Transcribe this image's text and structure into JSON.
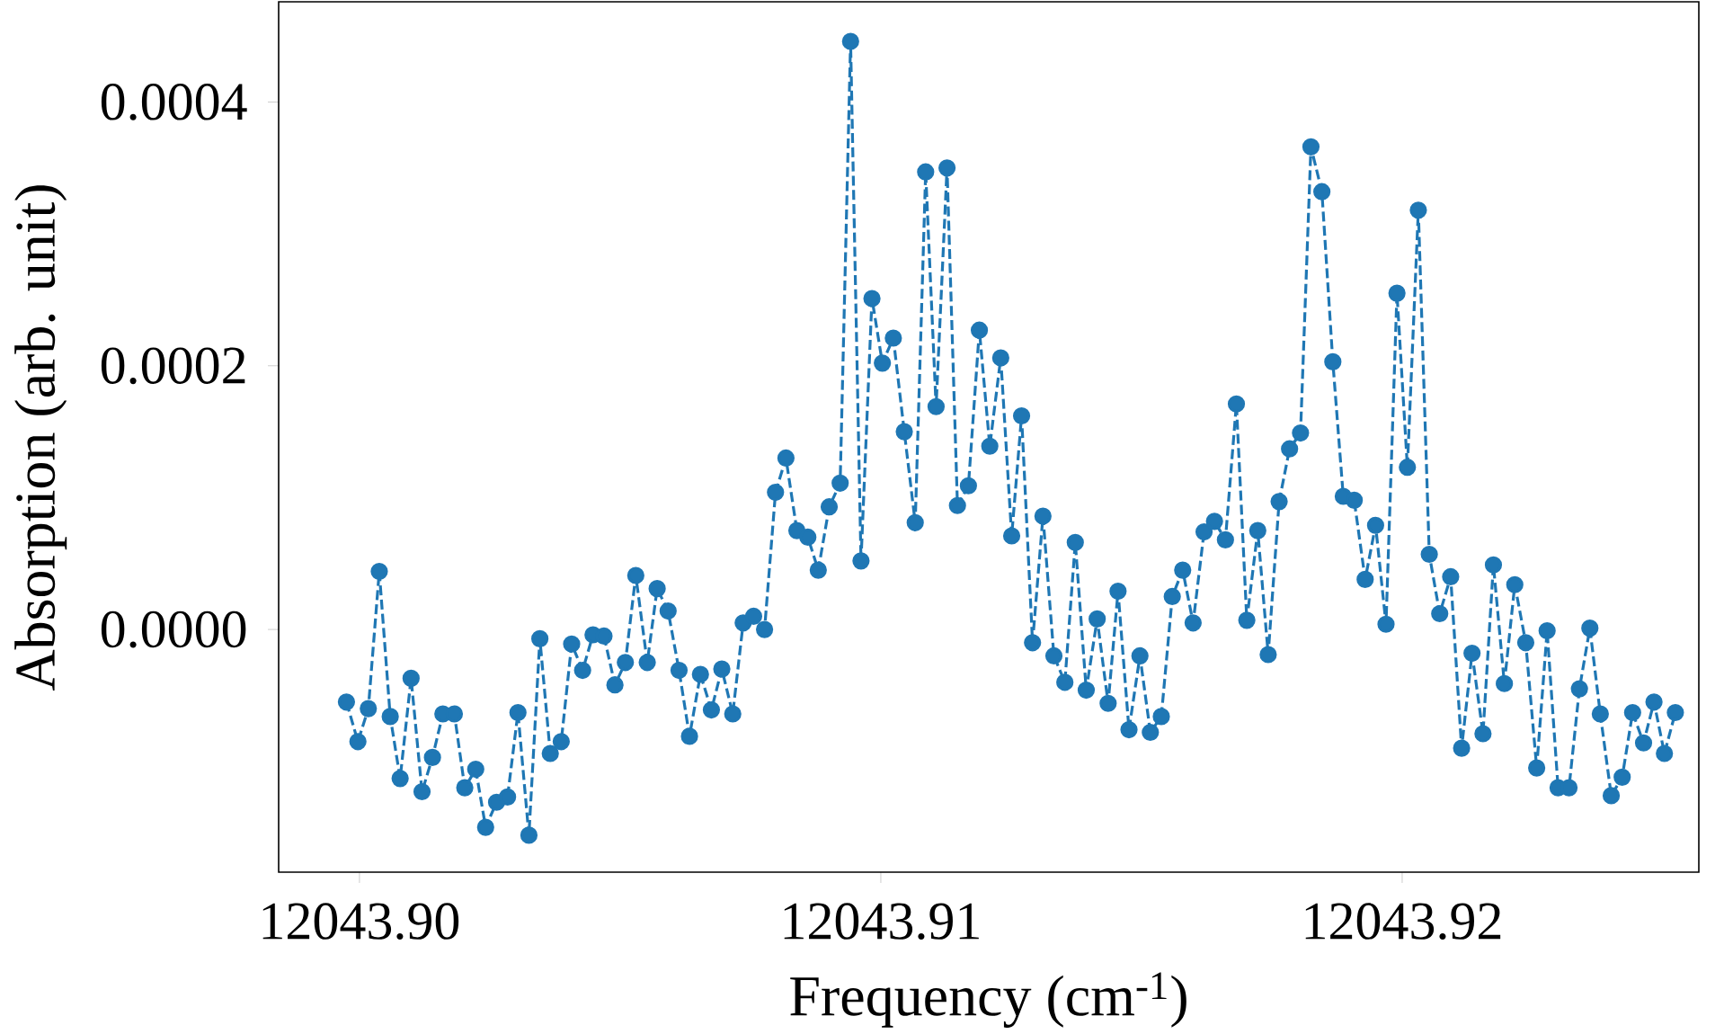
{
  "chart_data": {
    "type": "line",
    "xlabel": "Frequency (cm$^{-1}$)",
    "ylabel": "Absorption (arb. unit)",
    "xlim": [
      12043.89845,
      12043.92569
    ],
    "ylim": [
      -0.000184,
      0.000476
    ],
    "xticks": [
      {
        "value": 12043.9,
        "label": "12043.90"
      },
      {
        "value": 12043.91,
        "label": "12043.91"
      },
      {
        "value": 12043.92,
        "label": "12043.92"
      }
    ],
    "yticks": [
      {
        "value": 0.0,
        "label": "0.0000"
      },
      {
        "value": 0.0002,
        "label": "0.0002"
      },
      {
        "value": 0.0004,
        "label": "0.0004"
      }
    ],
    "grid": false,
    "marker": "circle",
    "line_style": "dashed",
    "series": [
      {
        "color": "#1f77b4",
        "x": [
          12043.89975,
          12043.89997,
          12043.90017,
          12043.90038,
          12043.90059,
          12043.90078,
          12043.90099,
          12043.9012,
          12043.9014,
          12043.9016,
          12043.90182,
          12043.90202,
          12043.90223,
          12043.90242,
          12043.90263,
          12043.90284,
          12043.90304,
          12043.90325,
          12043.90346,
          12043.90366,
          12043.90387,
          12043.90407,
          12043.90428,
          12043.90448,
          12043.90469,
          12043.9049,
          12043.9051,
          12043.9053,
          12043.90552,
          12043.90571,
          12043.90592,
          12043.90613,
          12043.90633,
          12043.90654,
          12043.90675,
          12043.90695,
          12043.90716,
          12043.90736,
          12043.90756,
          12043.90777,
          12043.90798,
          12043.90818,
          12043.90839,
          12043.9086,
          12043.9088,
          12043.90901,
          12043.90922,
          12043.90942,
          12043.90962,
          12043.90983,
          12043.91003,
          12043.91024,
          12043.91045,
          12043.91066,
          12043.91086,
          12043.91106,
          12043.91127,
          12043.91147,
          12043.91168,
          12043.91189,
          12043.91209,
          12043.9123,
          12043.91251,
          12043.9127,
          12043.91291,
          12043.91311,
          12043.91332,
          12043.91353,
          12043.91373,
          12043.91394,
          12043.91415,
          12043.91436,
          12043.91455,
          12043.91476,
          12043.91497,
          12043.91517,
          12043.91538,
          12043.91559,
          12043.91579,
          12043.91599,
          12043.9162,
          12043.9164,
          12043.91661,
          12043.91682,
          12043.91702,
          12043.91723,
          12043.91743,
          12043.91764,
          12043.91784,
          12043.91805,
          12043.91825,
          12043.91846,
          12043.91867,
          12043.91887,
          12043.91908,
          12043.91929,
          12043.91949,
          12043.91969,
          12043.9199,
          12043.9201,
          12043.92031,
          12043.92052,
          12043.92072,
          12043.92093,
          12043.92114,
          12043.92134,
          12043.92155,
          12043.92175,
          12043.92196,
          12043.92216,
          12043.92237,
          12043.92258,
          12043.92278,
          12043.92299,
          12043.9232,
          12043.9234,
          12043.9236,
          12043.9238,
          12043.92401,
          12043.92422,
          12043.92442,
          12043.92463,
          12043.92483,
          12043.92503,
          12043.92524
        ],
        "values": [
          -5.5e-05,
          -8.5e-05,
          -6e-05,
          4.4e-05,
          -6.6e-05,
          -0.000113,
          -3.7e-05,
          -0.000123,
          -9.7e-05,
          -6.4e-05,
          -6.4e-05,
          -0.00012,
          -0.000106,
          -0.00015,
          -0.000131,
          -0.000127,
          -6.3e-05,
          -0.000156,
          -7e-06,
          -9.4e-05,
          -8.5e-05,
          -1.1e-05,
          -3.1e-05,
          -4e-06,
          -5e-06,
          -4.2e-05,
          -2.5e-05,
          4.1e-05,
          -2.5e-05,
          3.1e-05,
          1.4e-05,
          -3.1e-05,
          -8.1e-05,
          -3.4e-05,
          -6.1e-05,
          -3e-05,
          -6.4e-05,
          5e-06,
          1e-05,
          0.0,
          0.000104,
          0.00013,
          7.5e-05,
          7e-05,
          4.5e-05,
          9.3e-05,
          0.000111,
          0.000446,
          5.2e-05,
          0.000251,
          0.000202,
          0.000221,
          0.00015,
          8.1e-05,
          0.000347,
          0.000169,
          0.00035,
          9.4e-05,
          0.000109,
          0.000227,
          0.000139,
          0.000206,
          7.1e-05,
          0.000162,
          -1e-05,
          8.6e-05,
          -2e-05,
          -4e-05,
          6.6e-05,
          -4.6e-05,
          8e-06,
          -5.6e-05,
          2.9e-05,
          -7.6e-05,
          -2e-05,
          -7.8e-05,
          -6.6e-05,
          2.5e-05,
          4.5e-05,
          5e-06,
          7.4e-05,
          8.2e-05,
          6.8e-05,
          0.000171,
          7e-06,
          7.5e-05,
          -1.9e-05,
          9.7e-05,
          0.000137,
          0.000149,
          0.000366,
          0.000332,
          0.000203,
          0.000101,
          9.8e-05,
          3.8e-05,
          7.9e-05,
          4e-06,
          0.000255,
          0.000123,
          0.000318,
          5.7e-05,
          1.2e-05,
          4e-05,
          -9e-05,
          -1.8e-05,
          -7.9e-05,
          4.9e-05,
          -4.1e-05,
          3.4e-05,
          -1e-05,
          -0.000105,
          -1e-06,
          -0.00012,
          -0.00012,
          -4.5e-05,
          1e-06,
          -6.4e-05,
          -0.000126,
          -0.000112,
          -6.3e-05,
          -8.6e-05,
          -5.5e-05,
          -9.4e-05,
          -6.3e-05
        ]
      }
    ]
  }
}
